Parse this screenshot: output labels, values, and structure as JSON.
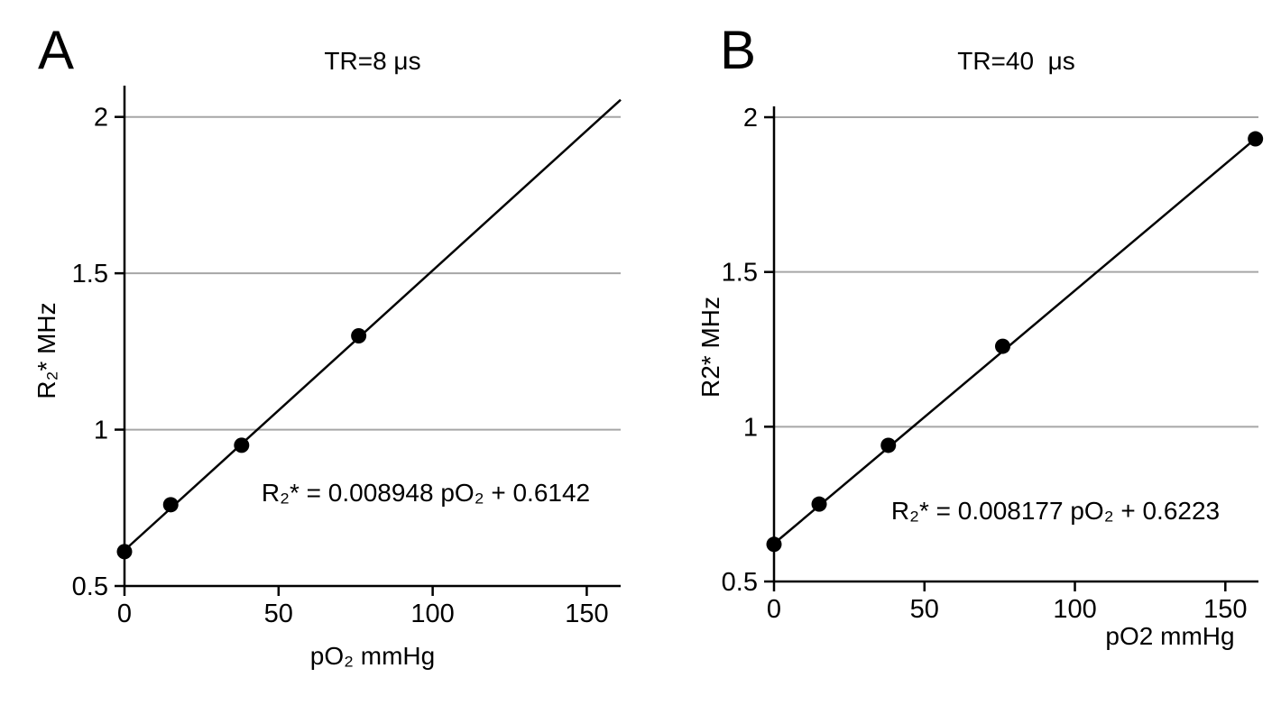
{
  "figure": {
    "background": "#ffffff"
  },
  "chart_data": [
    {
      "type": "scatter",
      "panel_label": "A",
      "title": "TR=8 μs",
      "xlabel": "pO₂ mmHg",
      "ylabel": "R₂* MHz",
      "points": {
        "x": [
          0,
          15,
          38,
          76
        ],
        "y": [
          0.61,
          0.76,
          0.95,
          1.3
        ]
      },
      "fit": {
        "slope": 0.008948,
        "intercept": 0.6142,
        "equation": "R₂* = 0.008948 pO₂ + 0.6142",
        "line_x_range": [
          0,
          161
        ]
      },
      "xlim": [
        0,
        161
      ],
      "ylim": [
        0.5,
        2.1
      ],
      "xticks": [
        0,
        50,
        100,
        150
      ],
      "yticks": [
        0.5,
        1,
        1.5,
        2
      ],
      "tick_labels": {
        "x": [
          "0",
          "50",
          "100",
          "150"
        ],
        "y": [
          "0.5",
          "1",
          "1.5",
          "2"
        ]
      },
      "grid": "horizontal",
      "grid_color": "#a6a6a6",
      "axis_color": "#000000",
      "marker": "filled-circle",
      "marker_color": "#000000",
      "line_color": "#000000"
    },
    {
      "type": "scatter",
      "panel_label": "B",
      "title": "TR=40  μs",
      "xlabel": "pO2 mmHg",
      "ylabel": "R2* MHz",
      "points": {
        "x": [
          0,
          15,
          38,
          76,
          160
        ],
        "y": [
          0.62,
          0.75,
          0.94,
          1.26,
          1.93
        ]
      },
      "fit": {
        "slope": 0.008177,
        "intercept": 0.6223,
        "equation": "R₂* = 0.008177 pO₂ + 0.6223",
        "line_x_range": [
          0,
          160
        ]
      },
      "xlim": [
        0,
        161
      ],
      "ylim": [
        0.5,
        2.035
      ],
      "xticks": [
        0,
        50,
        100,
        150
      ],
      "yticks": [
        0.5,
        1,
        1.5,
        2
      ],
      "tick_labels": {
        "x": [
          "0",
          "50",
          "100",
          "150"
        ],
        "y": [
          "0.5",
          "1",
          "1.5",
          "2"
        ]
      },
      "grid": "horizontal",
      "grid_color": "#a6a6a6",
      "axis_color": "#000000",
      "marker": "filled-circle",
      "marker_color": "#000000",
      "line_color": "#000000"
    }
  ]
}
